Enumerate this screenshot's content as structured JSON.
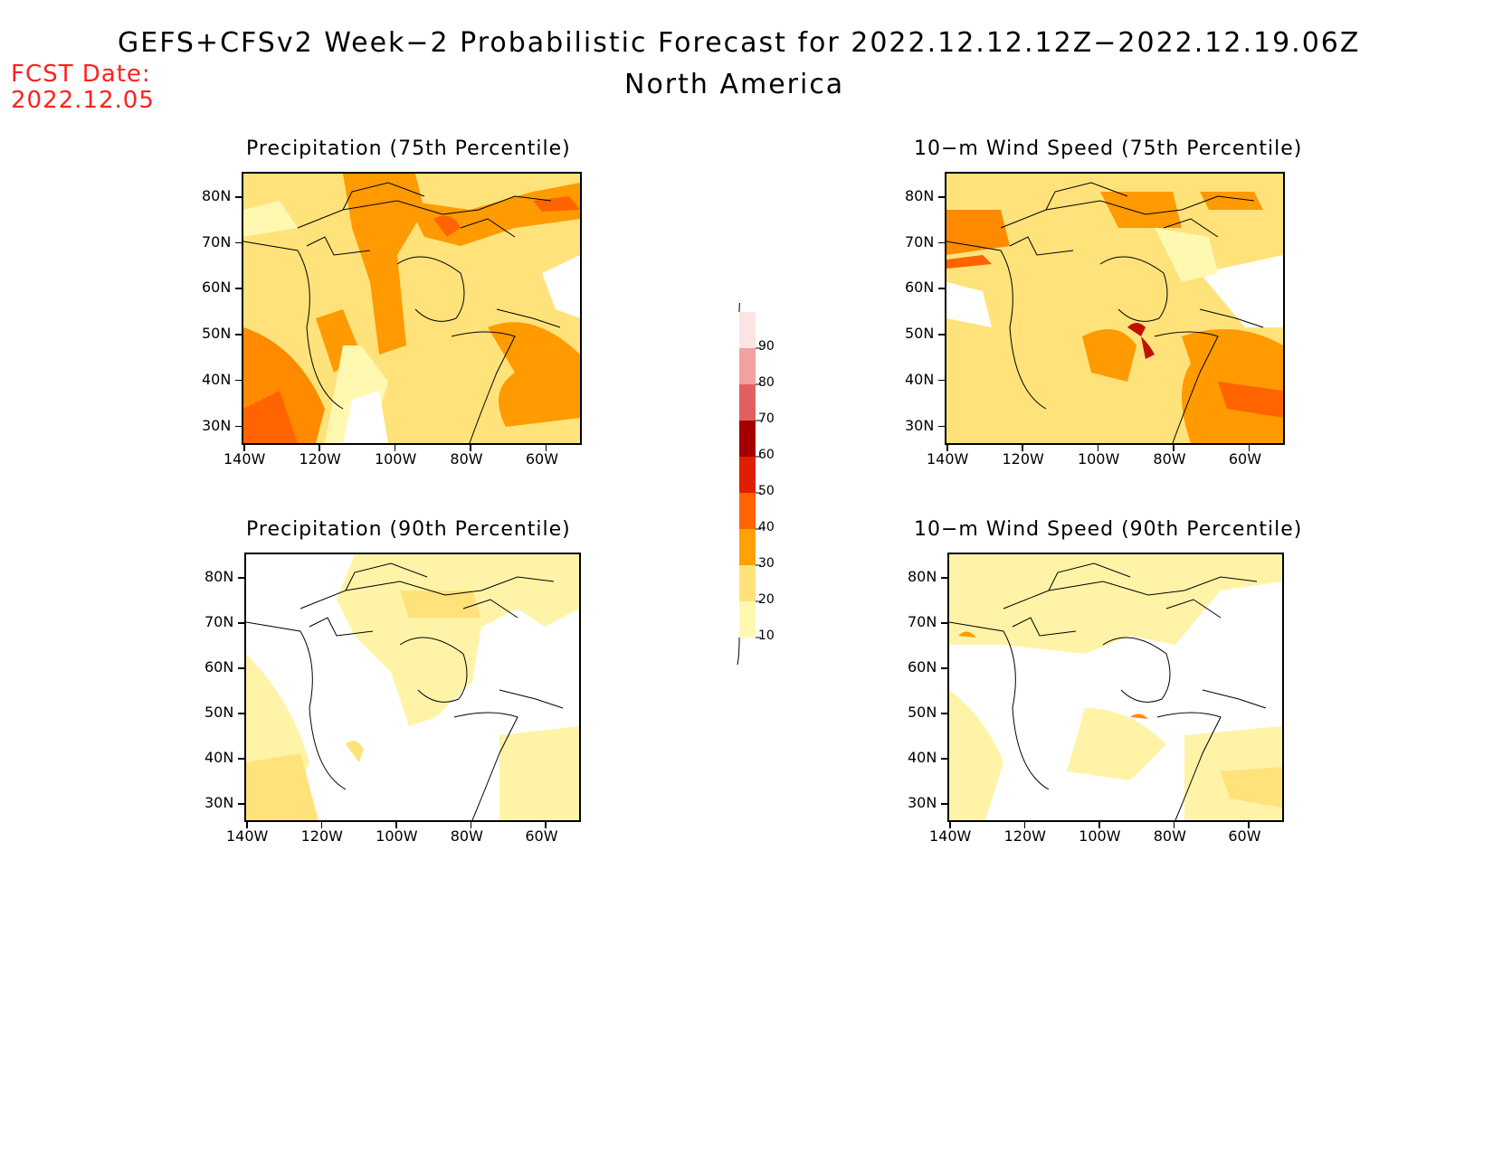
{
  "header": {
    "title": "GEFS+CFSv2 Week−2 Probabilistic Forecast for 2022.12.12.12Z−2022.12.19.06Z",
    "subtitle": "North America",
    "fcst_label": "FCST Date:",
    "fcst_date": "2022.12.05"
  },
  "panels": [
    {
      "title": "Precipitation (75th Percentile)"
    },
    {
      "title": "10−m Wind Speed (75th Percentile)"
    },
    {
      "title": "Precipitation (90th Percentile)"
    },
    {
      "title": "10−m Wind Speed (90th Percentile)"
    }
  ],
  "axes": {
    "lat_labels": [
      "80N",
      "70N",
      "60N",
      "50N",
      "40N",
      "30N"
    ],
    "lon_labels": [
      "140W",
      "120W",
      "100W",
      "80W",
      "60W"
    ]
  },
  "colorbar": {
    "levels": [
      "10",
      "20",
      "30",
      "40",
      "50",
      "60",
      "70",
      "80",
      "90"
    ],
    "colors": [
      "#fff8b0",
      "#ffe27a",
      "#ffa200",
      "#ff6400",
      "#e01e00",
      "#a50000",
      "#e06060",
      "#f2a0a0",
      "#fde4e4"
    ]
  }
}
